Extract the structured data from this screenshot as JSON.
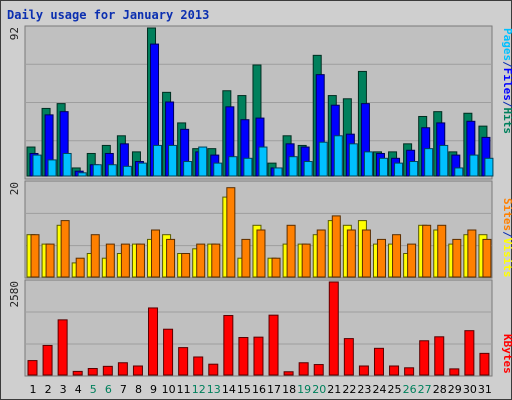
{
  "page": {
    "title": "Daily usage for January 2013",
    "legends": {
      "top": [
        "Pages",
        "/",
        "Files",
        "/",
        "Hits"
      ],
      "middle": [
        "Sites",
        "/",
        "Visits"
      ],
      "bottom": [
        "KBytes"
      ]
    },
    "colors": {
      "background": "#c0c0c0",
      "frame": "#d0d0d0",
      "hits": "#00805c",
      "files": "#0000ff",
      "pages": "#00c0ff",
      "visits": "#ffff00",
      "sites": "#ff8000",
      "kbytes": "#ff0000",
      "weekend_label": "#00805c",
      "weekday_label": "#000000"
    }
  },
  "chart_data": [
    {
      "type": "bar",
      "panel": "hits-files-pages",
      "y_max_label": "92",
      "ylim": [
        0,
        92
      ],
      "categories": [
        "1",
        "2",
        "3",
        "4",
        "5",
        "6",
        "7",
        "8",
        "9",
        "10",
        "11",
        "12",
        "13",
        "14",
        "15",
        "16",
        "17",
        "18",
        "19",
        "20",
        "21",
        "22",
        "23",
        "24",
        "25",
        "26",
        "27",
        "28",
        "29",
        "30",
        "31"
      ],
      "weekend_days": [
        "5",
        "6",
        "12",
        "13",
        "19",
        "20",
        "26",
        "27"
      ],
      "series": [
        {
          "name": "Hits",
          "values": [
            18,
            42,
            45,
            5,
            14,
            19,
            25,
            15,
            92,
            52,
            33,
            17,
            17,
            53,
            50,
            69,
            8,
            25,
            19,
            75,
            50,
            48,
            65,
            15,
            15,
            20,
            37,
            40,
            15,
            39,
            31
          ]
        },
        {
          "name": "Files",
          "values": [
            14,
            38,
            40,
            3,
            7,
            14,
            20,
            9,
            82,
            46,
            29,
            15,
            13,
            43,
            35,
            36,
            5,
            20,
            18,
            63,
            44,
            26,
            45,
            14,
            11,
            16,
            30,
            33,
            13,
            34,
            24
          ]
        },
        {
          "name": "Pages",
          "values": [
            13,
            10,
            14,
            2,
            7,
            7,
            6,
            8,
            19,
            19,
            9,
            18,
            8,
            12,
            11,
            18,
            5,
            12,
            9,
            21,
            25,
            20,
            15,
            11,
            8,
            9,
            17,
            19,
            5,
            13,
            11
          ]
        }
      ]
    },
    {
      "type": "bar",
      "panel": "sites-visits",
      "y_max_label": "20",
      "ylim": [
        0,
        20
      ],
      "categories": [
        "1",
        "2",
        "3",
        "4",
        "5",
        "6",
        "7",
        "8",
        "9",
        "10",
        "11",
        "12",
        "13",
        "14",
        "15",
        "16",
        "17",
        "18",
        "19",
        "20",
        "21",
        "22",
        "23",
        "24",
        "25",
        "26",
        "27",
        "28",
        "29",
        "30",
        "31"
      ],
      "series": [
        {
          "name": "Visits",
          "values": [
            9,
            7,
            11,
            3,
            5,
            4,
            5,
            7,
            8,
            9,
            5,
            6,
            7,
            17,
            4,
            11,
            4,
            7,
            7,
            9,
            12,
            11,
            12,
            7,
            7,
            5,
            11,
            10,
            7,
            9,
            9
          ]
        },
        {
          "name": "Sites",
          "values": [
            9,
            7,
            12,
            4,
            9,
            7,
            7,
            7,
            10,
            8,
            5,
            7,
            7,
            19,
            8,
            10,
            4,
            11,
            7,
            10,
            13,
            10,
            10,
            8,
            9,
            7,
            11,
            11,
            8,
            10,
            8
          ]
        }
      ]
    },
    {
      "type": "bar",
      "panel": "kbytes",
      "y_max_label": "2580",
      "ylim": [
        0,
        2580
      ],
      "categories": [
        "1",
        "2",
        "3",
        "4",
        "5",
        "6",
        "7",
        "8",
        "9",
        "10",
        "11",
        "12",
        "13",
        "14",
        "15",
        "16",
        "17",
        "18",
        "19",
        "20",
        "21",
        "22",
        "23",
        "24",
        "25",
        "26",
        "27",
        "28",
        "29",
        "30",
        "31"
      ],
      "series": [
        {
          "name": "KBytes",
          "values": [
            400,
            820,
            1530,
            100,
            180,
            240,
            340,
            250,
            1860,
            1270,
            760,
            500,
            300,
            1650,
            1040,
            1050,
            1660,
            90,
            340,
            290,
            2580,
            1010,
            250,
            740,
            250,
            200,
            950,
            1060,
            170,
            1230,
            600
          ]
        }
      ]
    }
  ]
}
